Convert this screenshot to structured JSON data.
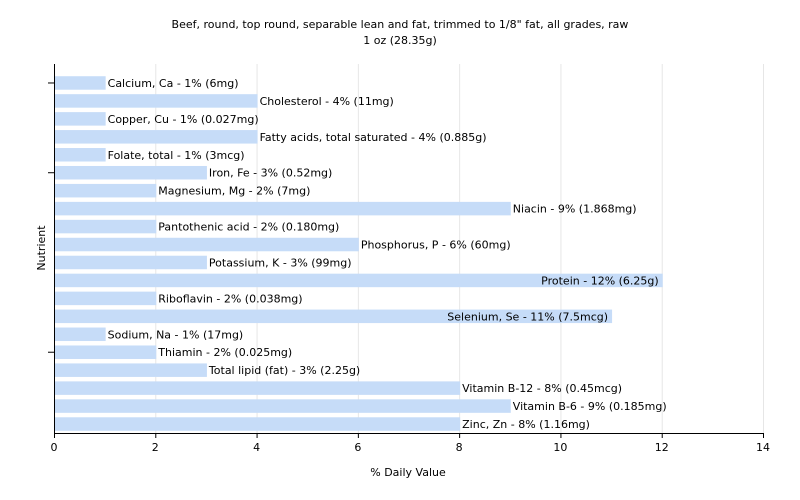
{
  "chart_data": {
    "type": "bar",
    "orientation": "horizontal",
    "title": "Beef, round, top round, separable lean and fat, trimmed to 1/8\" fat, all grades, raw",
    "subtitle": "1 oz (28.35g)",
    "xlabel": "% Daily Value",
    "ylabel": "Nutrient",
    "xlim": [
      0,
      14
    ],
    "xticks": [
      0,
      2,
      4,
      6,
      8,
      10,
      12,
      14
    ],
    "grid": true,
    "bar_color": "#c6dcf8",
    "categories": [
      "Calcium, Ca",
      "Cholesterol",
      "Copper, Cu",
      "Fatty acids, total saturated",
      "Folate, total",
      "Iron, Fe",
      "Magnesium, Mg",
      "Niacin",
      "Pantothenic acid",
      "Phosphorus, P",
      "Potassium, K",
      "Protein",
      "Riboflavin",
      "Selenium, Se",
      "Sodium, Na",
      "Thiamin",
      "Total lipid (fat)",
      "Vitamin B-12",
      "Vitamin B-6",
      "Zinc, Zn"
    ],
    "values": [
      1,
      4,
      1,
      4,
      1,
      3,
      2,
      9,
      2,
      6,
      3,
      12,
      2,
      11,
      1,
      2,
      3,
      8,
      9,
      8
    ],
    "labels": [
      "Calcium, Ca - 1% (6mg)",
      "Cholesterol - 4% (11mg)",
      "Copper, Cu - 1% (0.027mg)",
      "Fatty acids, total saturated - 4% (0.885g)",
      "Folate, total - 1% (3mcg)",
      "Iron, Fe - 3% (0.52mg)",
      "Magnesium, Mg - 2% (7mg)",
      "Niacin - 9% (1.868mg)",
      "Pantothenic acid - 2% (0.180mg)",
      "Phosphorus, P - 6% (60mg)",
      "Potassium, K - 3% (99mg)",
      "Protein - 12% (6.25g)",
      "Riboflavin - 2% (0.038mg)",
      "Selenium, Se - 11% (7.5mcg)",
      "Sodium, Na - 1% (17mg)",
      "Thiamin - 2% (0.025mg)",
      "Total lipid (fat) - 3% (2.25g)",
      "Vitamin B-12 - 8% (0.45mcg)",
      "Vitamin B-6 - 9% (0.185mg)",
      "Zinc, Zn - 8% (1.16mg)"
    ]
  }
}
